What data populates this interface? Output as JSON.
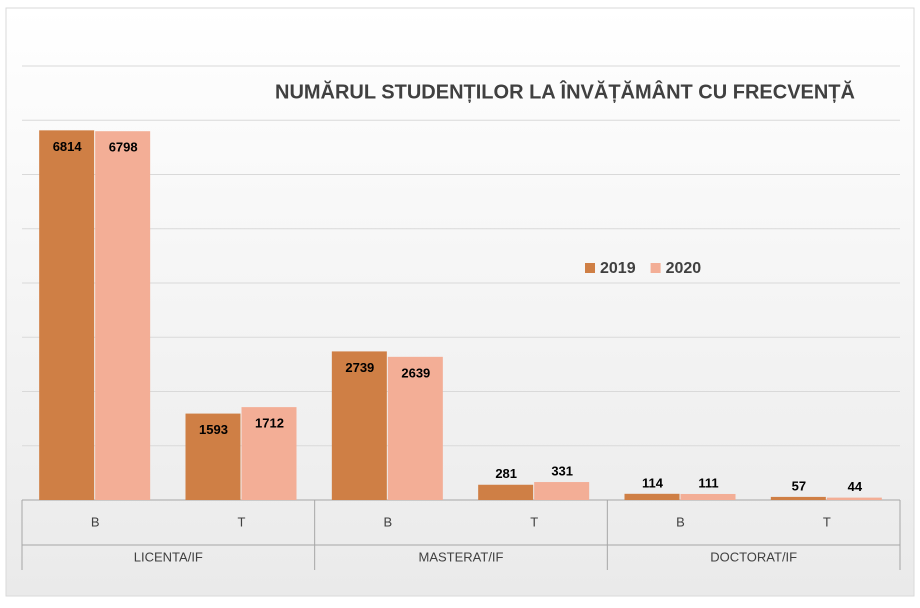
{
  "chart_data": {
    "type": "bar",
    "title": "NUMĂRUL STUDENȚILOR LA ÎNVĂȚĂMÂNT CU FRECVENȚĂ",
    "categories": [
      "B",
      "T",
      "B",
      "T",
      "B",
      "T"
    ],
    "groups": [
      "LICENTA/IF",
      "MASTERAT/IF",
      "DOCTORAT/IF"
    ],
    "series": [
      {
        "name": "2019",
        "color": "#cf7f45",
        "values": [
          6814,
          1593,
          2739,
          281,
          114,
          57
        ]
      },
      {
        "name": "2020",
        "color": "#f3ae96",
        "values": [
          6798,
          1712,
          2639,
          331,
          111,
          44
        ]
      }
    ],
    "ylim": [
      0,
      8000
    ],
    "yticks": [
      0,
      1000,
      2000,
      3000,
      4000,
      5000,
      6000,
      7000,
      8000
    ],
    "grid": true
  }
}
